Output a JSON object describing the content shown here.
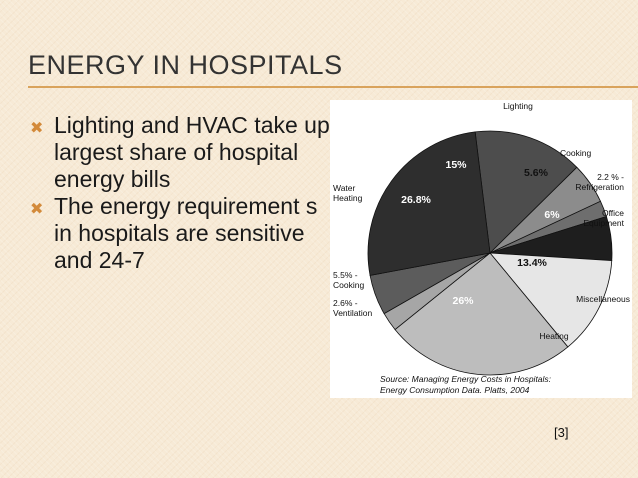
{
  "slide": {
    "title": "ENERGY IN HOSPITALS",
    "bullets": [
      "Lighting and HVAC take up largest share of hospital energy bills",
      "The energy requirement s in hospitals are sensitive and 24-7"
    ],
    "reference": "[3]"
  },
  "colors": {
    "accent": "#d38a3a",
    "rule": "#d9a35c"
  },
  "chart_data": {
    "type": "pie",
    "source_line1": "Source: Managing Energy Costs in Hospitals:",
    "source_line2": "Energy Consumption Data. Platts, 2004",
    "slices": [
      {
        "label": "Lighting",
        "value_label": "15%",
        "value": 15,
        "color": "#4d4d4d"
      },
      {
        "label": "Cooking",
        "value_label": "5.6%",
        "value": 5.6,
        "color": "#8c8c8c"
      },
      {
        "label": "2.2 % - Refrigeration",
        "value_label": "",
        "value": 2.2,
        "color": "#6e6e6e"
      },
      {
        "label": "Office Equipment",
        "value_label": "6%",
        "value": 6,
        "color": "#1e1e1e"
      },
      {
        "label": "Miscellaneous",
        "value_label": "13.4%",
        "value": 13.4,
        "color": "#e6e6e6"
      },
      {
        "label": "Heating",
        "value_label": "26%",
        "value": 26,
        "color": "#bdbdbd"
      },
      {
        "label": "2.6% - Ventilation",
        "value_label": "",
        "value": 2.6,
        "color": "#a6a6a6"
      },
      {
        "label": "5.5% - Cooking",
        "value_label": "",
        "value": 5.5,
        "color": "#5c5c5c"
      },
      {
        "label": "Water Heating",
        "value_label": "26.8%",
        "value": 26.8,
        "color": "#2e2e2e"
      }
    ]
  }
}
